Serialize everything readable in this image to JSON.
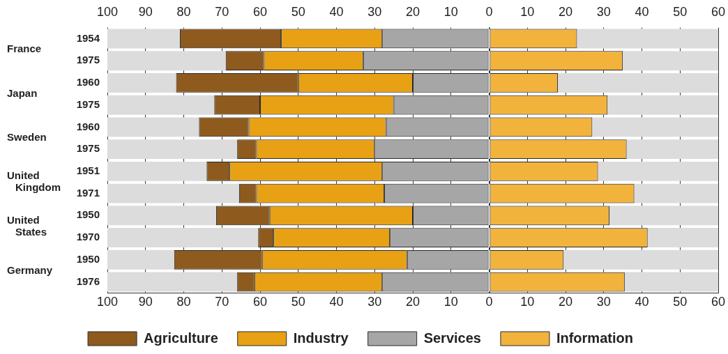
{
  "chart_data": {
    "type": "bar",
    "orientation": "horizontal",
    "stacked": true,
    "categories": [
      "1954",
      "1975",
      "1960",
      "1975",
      "1960",
      "1975",
      "1951",
      "1971",
      "1950",
      "1970",
      "1950",
      "1976"
    ],
    "series": [
      {
        "name": "Services",
        "color": "#a6a6a6",
        "values": [
          -28,
          -33,
          -20,
          -25,
          -27,
          -30,
          -28,
          -27.5,
          -20,
          -26,
          -21.5,
          -28
        ]
      },
      {
        "name": "Industry",
        "color": "#e8a115",
        "values": [
          -26.5,
          -26,
          -30,
          -35,
          -36,
          -31,
          -40,
          -33.5,
          -37.5,
          -30.5,
          -38,
          -33.5
        ]
      },
      {
        "name": "Agriculture",
        "color": "#8e5a1e",
        "values": [
          -26.5,
          -10,
          -32,
          -12,
          -13,
          -5,
          -6,
          -4.5,
          -14,
          -4,
          -23,
          -4.5
        ]
      },
      {
        "name": "Information",
        "color": "#f2b33d",
        "values": [
          23,
          35,
          18,
          31,
          27,
          36,
          28.5,
          38,
          31.5,
          41.5,
          19.5,
          35.5
        ]
      }
    ],
    "annotations": [
      "France",
      "Japan",
      "Sweden",
      "United Kingdom",
      "United States",
      "Germany"
    ],
    "xlim": [
      -100,
      60
    ],
    "xticks": [
      {
        "value": -100,
        "label": "100"
      },
      {
        "value": -90,
        "label": "90"
      },
      {
        "value": -80,
        "label": "80"
      },
      {
        "value": -70,
        "label": "70"
      },
      {
        "value": -60,
        "label": "60"
      },
      {
        "value": -50,
        "label": "50"
      },
      {
        "value": -40,
        "label": "40"
      },
      {
        "value": -30,
        "label": "30"
      },
      {
        "value": -20,
        "label": "20"
      },
      {
        "value": -10,
        "label": "10"
      },
      0,
      10,
      20,
      30,
      40,
      50,
      60
    ],
    "x2lim": [
      -100,
      60
    ],
    "x2ticks": [
      {
        "value": -100,
        "label": "100"
      },
      {
        "value": -90,
        "label": "90"
      },
      {
        "value": -80,
        "label": "80"
      },
      {
        "value": -70,
        "label": "70"
      },
      {
        "value": -60,
        "label": "60"
      },
      {
        "value": -50,
        "label": "50"
      },
      {
        "value": -40,
        "label": "40"
      },
      {
        "value": -30,
        "label": "30"
      },
      {
        "value": -20,
        "label": "20"
      },
      {
        "value": -10,
        "label": "10"
      },
      0,
      10,
      20,
      30,
      40,
      50,
      60
    ],
    "grid": "x",
    "legend": "bottom"
  }
}
